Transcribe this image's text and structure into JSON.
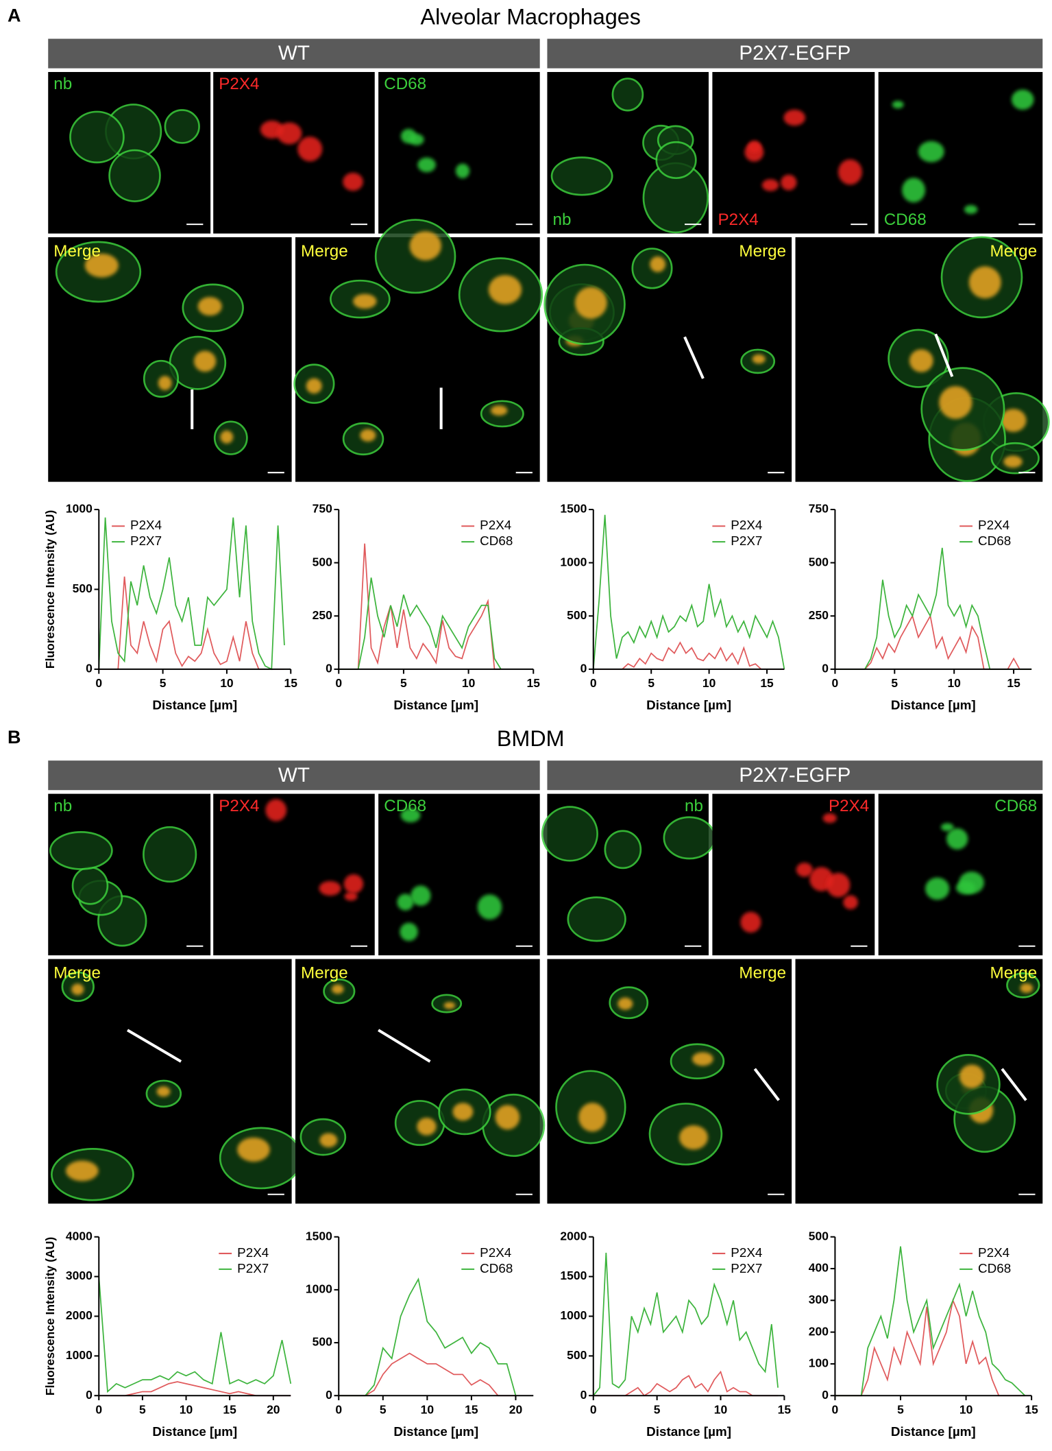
{
  "figure": {
    "panels": [
      {
        "letter": "A",
        "title": "Alveolar Macrophages",
        "groups": [
          {
            "name": "WT",
            "channels": [
              "nb",
              "P2X4",
              "CD68"
            ],
            "merge": [
              "Merge",
              "Merge"
            ]
          },
          {
            "name": "P2X7-EGFP",
            "channels": [
              "nb",
              "P2X4",
              "CD68"
            ],
            "merge": [
              "Merge",
              "Merge"
            ]
          }
        ]
      },
      {
        "letter": "B",
        "title": "BMDM",
        "groups": [
          {
            "name": "WT",
            "channels": [
              "nb",
              "P2X4",
              "CD68"
            ],
            "merge": [
              "Merge",
              "Merge"
            ]
          },
          {
            "name": "P2X7-EGFP",
            "channels": [
              "nb",
              "P2X4",
              "CD68"
            ],
            "merge": [
              "Merge",
              "Merge"
            ]
          }
        ]
      }
    ]
  },
  "chart_data": [
    {
      "type": "line",
      "ylabel": "Fluorescence Intensity (AU)",
      "xlabel": "Distance [µm]",
      "legend": "upper left",
      "xlim": [
        0,
        15
      ],
      "ylim": [
        0,
        1000
      ],
      "xticks": [
        0,
        5,
        10,
        15
      ],
      "yticks": [
        0,
        500,
        1000
      ],
      "x": [
        0,
        0.5,
        1,
        1.5,
        2,
        2.5,
        3,
        3.5,
        4,
        4.5,
        5,
        5.5,
        6,
        6.5,
        7,
        7.5,
        8,
        8.5,
        9,
        9.5,
        10,
        10.5,
        11,
        11.5,
        12,
        12.5,
        13,
        13.5,
        14,
        14.5
      ],
      "series": [
        {
          "name": "P2X4",
          "color": "#e05a5c",
          "values": [
            0,
            0,
            0,
            0,
            580,
            150,
            100,
            300,
            150,
            50,
            250,
            300,
            100,
            20,
            80,
            50,
            100,
            250,
            100,
            30,
            50,
            200,
            50,
            300,
            100,
            0,
            0,
            0,
            0,
            0
          ]
        },
        {
          "name": "P2X7",
          "color": "#3db43d",
          "values": [
            0,
            950,
            300,
            100,
            50,
            550,
            400,
            650,
            450,
            350,
            500,
            700,
            400,
            300,
            450,
            150,
            150,
            450,
            400,
            450,
            500,
            950,
            450,
            900,
            300,
            100,
            20,
            0,
            900,
            150
          ]
        }
      ]
    },
    {
      "type": "line",
      "xlabel": "Distance [µm]",
      "legend": "upper right",
      "xlim": [
        0,
        15
      ],
      "ylim": [
        0,
        750
      ],
      "xticks": [
        0,
        5,
        10,
        15
      ],
      "yticks": [
        0,
        250,
        500,
        750
      ],
      "x": [
        0,
        0.5,
        1,
        1.5,
        2,
        2.5,
        3,
        3.5,
        4,
        4.5,
        5,
        5.5,
        6,
        6.5,
        7,
        7.5,
        8,
        8.5,
        9,
        9.5,
        10,
        10.5,
        11,
        11.5,
        12,
        12.5
      ],
      "series": [
        {
          "name": "P2X4",
          "color": "#e05a5c",
          "values": [
            0,
            0,
            0,
            0,
            590,
            100,
            30,
            200,
            300,
            100,
            280,
            100,
            50,
            120,
            80,
            30,
            230,
            100,
            60,
            50,
            150,
            200,
            250,
            320,
            0,
            0
          ]
        },
        {
          "name": "CD68",
          "color": "#3db43d",
          "values": [
            0,
            0,
            0,
            0,
            150,
            430,
            250,
            150,
            300,
            200,
            350,
            250,
            300,
            250,
            200,
            100,
            250,
            200,
            150,
            100,
            200,
            250,
            300,
            300,
            50,
            0
          ]
        }
      ]
    },
    {
      "type": "line",
      "xlabel": "Distance [µm]",
      "legend": "upper right",
      "xlim": [
        0,
        16.5
      ],
      "ylim": [
        0,
        1500
      ],
      "xticks": [
        0,
        5,
        10,
        15
      ],
      "yticks": [
        0,
        500,
        1000,
        1500
      ],
      "x": [
        0,
        0.5,
        1,
        1.5,
        2,
        2.5,
        3,
        3.5,
        4,
        4.5,
        5,
        5.5,
        6,
        6.5,
        7,
        7.5,
        8,
        8.5,
        9,
        9.5,
        10,
        10.5,
        11,
        11.5,
        12,
        12.5,
        13,
        13.5,
        14,
        14.5,
        15,
        15.5,
        16,
        16.5
      ],
      "series": [
        {
          "name": "P2X4",
          "color": "#e05a5c",
          "values": [
            0,
            0,
            0,
            0,
            0,
            0,
            50,
            20,
            100,
            50,
            150,
            100,
            80,
            200,
            150,
            250,
            150,
            200,
            100,
            80,
            150,
            100,
            200,
            80,
            150,
            50,
            200,
            30,
            50,
            0,
            0,
            0,
            0,
            0
          ]
        },
        {
          "name": "P2X7",
          "color": "#3db43d",
          "values": [
            0,
            650,
            1450,
            500,
            100,
            300,
            350,
            250,
            400,
            300,
            450,
            300,
            500,
            350,
            400,
            500,
            450,
            600,
            400,
            450,
            800,
            500,
            650,
            400,
            500,
            350,
            450,
            300,
            500,
            400,
            300,
            450,
            300,
            0
          ]
        }
      ]
    },
    {
      "type": "line",
      "xlabel": "Distance [µm]",
      "legend": "upper right",
      "xlim": [
        0,
        16.5
      ],
      "ylim": [
        0,
        750
      ],
      "xticks": [
        0,
        5,
        10,
        15
      ],
      "yticks": [
        0,
        250,
        500,
        750
      ],
      "x": [
        0,
        0.5,
        1,
        1.5,
        2,
        2.5,
        3,
        3.5,
        4,
        4.5,
        5,
        5.5,
        6,
        6.5,
        7,
        7.5,
        8,
        8.5,
        9,
        9.5,
        10,
        10.5,
        11,
        11.5,
        12,
        12.5,
        13,
        13.5,
        14,
        14.5,
        15,
        15.5,
        16,
        16.5
      ],
      "series": [
        {
          "name": "P2X4",
          "color": "#e05a5c",
          "values": [
            0,
            0,
            0,
            0,
            0,
            0,
            30,
            100,
            50,
            120,
            80,
            150,
            200,
            250,
            150,
            200,
            250,
            100,
            150,
            50,
            100,
            150,
            80,
            200,
            150,
            0,
            0,
            0,
            0,
            0,
            50,
            0,
            0,
            0
          ]
        },
        {
          "name": "CD68",
          "color": "#3db43d",
          "values": [
            0,
            0,
            0,
            0,
            0,
            0,
            50,
            150,
            420,
            250,
            150,
            200,
            300,
            250,
            350,
            300,
            250,
            350,
            570,
            300,
            250,
            300,
            200,
            300,
            250,
            120,
            0,
            0,
            0,
            0,
            0,
            0,
            0,
            0
          ]
        }
      ]
    },
    {
      "type": "line",
      "ylabel": "Fluorescence Intensity (AU)",
      "xlabel": "Distance [µm]",
      "legend": "upper right",
      "xlim": [
        0,
        22
      ],
      "ylim": [
        0,
        4000
      ],
      "xticks": [
        0,
        5,
        10,
        15,
        20
      ],
      "yticks": [
        0,
        1000,
        2000,
        3000,
        4000
      ],
      "x": [
        0,
        1,
        2,
        3,
        4,
        5,
        6,
        7,
        8,
        9,
        10,
        11,
        12,
        13,
        14,
        15,
        16,
        17,
        18,
        19,
        20,
        21,
        22
      ],
      "series": [
        {
          "name": "P2X4",
          "color": "#e05a5c",
          "values": [
            0,
            0,
            0,
            0,
            50,
            100,
            100,
            200,
            300,
            350,
            300,
            250,
            200,
            150,
            100,
            50,
            100,
            50,
            0,
            0,
            0,
            0,
            0
          ]
        },
        {
          "name": "P2X7",
          "color": "#3db43d",
          "values": [
            3000,
            100,
            300,
            200,
            300,
            400,
            400,
            500,
            400,
            600,
            500,
            600,
            400,
            300,
            1600,
            300,
            400,
            300,
            400,
            300,
            500,
            1400,
            300
          ]
        }
      ]
    },
    {
      "type": "line",
      "xlabel": "Distance [µm]",
      "legend": "upper right",
      "xlim": [
        0,
        22
      ],
      "ylim": [
        0,
        1500
      ],
      "xticks": [
        0,
        5,
        10,
        15,
        20
      ],
      "yticks": [
        0,
        500,
        1000,
        1500
      ],
      "x": [
        0,
        1,
        2,
        3,
        4,
        5,
        6,
        7,
        8,
        9,
        10,
        11,
        12,
        13,
        14,
        15,
        16,
        17,
        18,
        19,
        20
      ],
      "series": [
        {
          "name": "P2X4",
          "color": "#e05a5c",
          "values": [
            0,
            0,
            0,
            0,
            50,
            200,
            300,
            350,
            400,
            350,
            300,
            300,
            250,
            200,
            200,
            100,
            150,
            100,
            0,
            0,
            0
          ]
        },
        {
          "name": "CD68",
          "color": "#3db43d",
          "values": [
            0,
            0,
            0,
            0,
            100,
            450,
            350,
            750,
            950,
            1100,
            700,
            600,
            450,
            500,
            550,
            400,
            500,
            450,
            300,
            300,
            0
          ]
        }
      ]
    },
    {
      "type": "line",
      "xlabel": "Distance [µm]",
      "legend": "upper right",
      "xlim": [
        0,
        15
      ],
      "ylim": [
        0,
        2000
      ],
      "xticks": [
        0,
        5,
        10,
        15
      ],
      "yticks": [
        0,
        500,
        1000,
        1500,
        2000
      ],
      "x": [
        0,
        0.5,
        1,
        1.5,
        2,
        2.5,
        3,
        3.5,
        4,
        4.5,
        5,
        5.5,
        6,
        6.5,
        7,
        7.5,
        8,
        8.5,
        9,
        9.5,
        10,
        10.5,
        11,
        11.5,
        12,
        12.5,
        13,
        13.5,
        14,
        14.5
      ],
      "series": [
        {
          "name": "P2X4",
          "color": "#e05a5c",
          "values": [
            0,
            0,
            0,
            0,
            0,
            0,
            50,
            100,
            0,
            50,
            150,
            100,
            50,
            100,
            200,
            250,
            100,
            150,
            50,
            200,
            300,
            50,
            100,
            50,
            50,
            0,
            0,
            0,
            0,
            0
          ]
        },
        {
          "name": "P2X7",
          "color": "#3db43d",
          "values": [
            0,
            100,
            1800,
            150,
            100,
            200,
            1000,
            800,
            1100,
            900,
            1300,
            800,
            900,
            1000,
            800,
            1200,
            1100,
            900,
            1000,
            1400,
            1200,
            900,
            1200,
            700,
            800,
            600,
            400,
            300,
            900,
            100
          ]
        }
      ]
    },
    {
      "type": "line",
      "xlabel": "Distance [µm]",
      "legend": "upper right",
      "xlim": [
        0,
        15
      ],
      "ylim": [
        0,
        500
      ],
      "xticks": [
        0,
        5,
        10,
        15
      ],
      "yticks": [
        0,
        100,
        200,
        300,
        400,
        500
      ],
      "x": [
        0,
        0.5,
        1,
        1.5,
        2,
        2.5,
        3,
        3.5,
        4,
        4.5,
        5,
        5.5,
        6,
        6.5,
        7,
        7.5,
        8,
        8.5,
        9,
        9.5,
        10,
        10.5,
        11,
        11.5,
        12,
        12.5,
        13,
        13.5,
        14,
        14.5
      ],
      "series": [
        {
          "name": "P2X4",
          "color": "#e05a5c",
          "values": [
            0,
            0,
            0,
            0,
            0,
            50,
            150,
            100,
            50,
            150,
            100,
            200,
            150,
            100,
            280,
            100,
            150,
            200,
            300,
            250,
            100,
            170,
            100,
            120,
            50,
            0,
            0,
            0,
            0,
            0
          ]
        },
        {
          "name": "CD68",
          "color": "#3db43d",
          "values": [
            0,
            0,
            0,
            0,
            0,
            150,
            200,
            250,
            180,
            300,
            470,
            300,
            200,
            250,
            300,
            150,
            200,
            250,
            300,
            350,
            250,
            330,
            250,
            200,
            100,
            80,
            50,
            40,
            20,
            0
          ]
        }
      ]
    }
  ]
}
